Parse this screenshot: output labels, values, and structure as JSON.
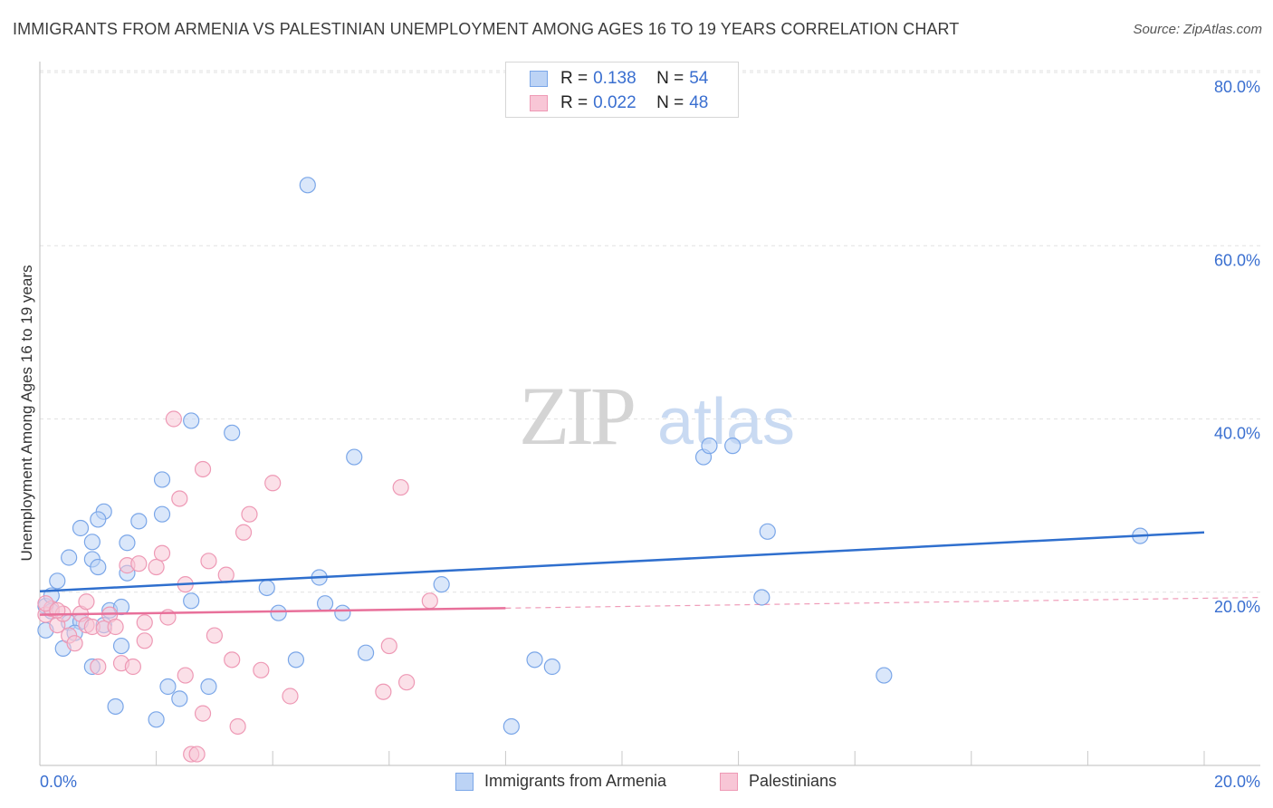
{
  "title": "IMMIGRANTS FROM ARMENIA VS PALESTINIAN UNEMPLOYMENT AMONG AGES 16 TO 19 YEARS CORRELATION CHART",
  "source": "Source: ZipAtlas.com",
  "watermark": {
    "zip": "ZIP",
    "atlas": "atlas"
  },
  "legend": {
    "rows": [
      {
        "r_label": "R =",
        "r_value": "0.138",
        "n_label": "N =",
        "n_value": "54",
        "fill": "#bcd3f5",
        "stroke": "#7aa6e8"
      },
      {
        "r_label": "R =",
        "r_value": "0.022",
        "n_label": "N =",
        "n_value": "48",
        "fill": "#f8c6d6",
        "stroke": "#ee99b5"
      }
    ]
  },
  "chart_data": {
    "type": "scatter",
    "title": "IMMIGRANTS FROM ARMENIA VS PALESTINIAN UNEMPLOYMENT AMONG AGES 16 TO 19 YEARS CORRELATION CHART",
    "xlabel": "",
    "ylabel": "Unemployment Among Ages 16 to 19 years",
    "xlim": [
      0,
      20
    ],
    "ylim": [
      0,
      80
    ],
    "x_tick_labels": [
      "0.0%",
      "20.0%"
    ],
    "y_ticks": [
      20,
      40,
      60,
      80
    ],
    "y_tick_labels": [
      "20.0%",
      "40.0%",
      "60.0%",
      "80.0%"
    ],
    "x_minor_ticks": [
      2,
      4,
      6,
      8,
      10,
      12,
      14,
      16,
      18,
      20
    ],
    "grid": true,
    "series": [
      {
        "name": "Immigrants from Armenia",
        "fill": "#bcd3f5",
        "stroke": "#7aa6e8",
        "line_color": "#2f6fce",
        "trend": {
          "x0": 0,
          "y0": 20.1,
          "x1": 20,
          "y1": 26.9,
          "dashed_from": null
        },
        "points": [
          [
            0.1,
            18.4
          ],
          [
            0.2,
            19.6
          ],
          [
            0.3,
            21.3
          ],
          [
            0.2,
            17.8
          ],
          [
            0.5,
            16.5
          ],
          [
            0.7,
            16.6
          ],
          [
            0.6,
            15.3
          ],
          [
            0.4,
            13.5
          ],
          [
            0.9,
            23.8
          ],
          [
            0.5,
            24.0
          ],
          [
            0.7,
            27.4
          ],
          [
            0.9,
            25.8
          ],
          [
            1.1,
            29.3
          ],
          [
            1.0,
            28.4
          ],
          [
            1.0,
            22.9
          ],
          [
            1.2,
            17.9
          ],
          [
            1.1,
            16.2
          ],
          [
            1.4,
            18.3
          ],
          [
            0.9,
            11.4
          ],
          [
            1.4,
            13.8
          ],
          [
            1.5,
            25.7
          ],
          [
            1.5,
            22.2
          ],
          [
            1.7,
            28.2
          ],
          [
            2.1,
            29.0
          ],
          [
            2.1,
            33.0
          ],
          [
            2.6,
            39.8
          ],
          [
            2.6,
            19.0
          ],
          [
            3.3,
            38.4
          ],
          [
            2.2,
            9.1
          ],
          [
            2.4,
            7.7
          ],
          [
            2.9,
            9.1
          ],
          [
            1.3,
            6.8
          ],
          [
            2.0,
            5.3
          ],
          [
            3.9,
            20.5
          ],
          [
            4.1,
            17.6
          ],
          [
            4.4,
            12.2
          ],
          [
            4.6,
            67.0
          ],
          [
            4.8,
            21.7
          ],
          [
            4.9,
            18.7
          ],
          [
            5.2,
            17.6
          ],
          [
            5.4,
            35.6
          ],
          [
            5.6,
            13.0
          ],
          [
            6.9,
            20.9
          ],
          [
            8.1,
            4.5
          ],
          [
            8.5,
            12.2
          ],
          [
            8.8,
            11.4
          ],
          [
            11.4,
            35.6
          ],
          [
            11.5,
            36.9
          ],
          [
            11.9,
            36.9
          ],
          [
            12.4,
            19.4
          ],
          [
            12.5,
            27.0
          ],
          [
            14.5,
            10.4
          ],
          [
            18.9,
            26.5
          ],
          [
            0.1,
            15.6
          ]
        ]
      },
      {
        "name": "Palestinians",
        "fill": "#f8c6d6",
        "stroke": "#ee99b5",
        "line_color": "#e8709a",
        "trend": {
          "x0": 0,
          "y0": 17.4,
          "x1": 20,
          "y1": 19.3,
          "dashed_from": 8
        },
        "points": [
          [
            0.1,
            17.4
          ],
          [
            0.2,
            18.1
          ],
          [
            0.3,
            16.2
          ],
          [
            0.4,
            17.5
          ],
          [
            0.5,
            15.0
          ],
          [
            0.6,
            14.1
          ],
          [
            0.7,
            17.5
          ],
          [
            0.8,
            16.2
          ],
          [
            0.8,
            18.9
          ],
          [
            0.9,
            16.0
          ],
          [
            1.0,
            11.4
          ],
          [
            1.1,
            15.8
          ],
          [
            1.2,
            17.4
          ],
          [
            1.3,
            16.0
          ],
          [
            1.4,
            11.8
          ],
          [
            1.5,
            23.1
          ],
          [
            1.6,
            11.4
          ],
          [
            1.7,
            23.3
          ],
          [
            1.8,
            16.5
          ],
          [
            1.8,
            14.4
          ],
          [
            2.0,
            22.9
          ],
          [
            2.1,
            24.5
          ],
          [
            2.2,
            17.1
          ],
          [
            2.3,
            40.0
          ],
          [
            2.4,
            30.8
          ],
          [
            2.5,
            20.9
          ],
          [
            2.5,
            10.4
          ],
          [
            2.6,
            1.3
          ],
          [
            2.7,
            1.3
          ],
          [
            2.8,
            34.2
          ],
          [
            2.8,
            6.0
          ],
          [
            2.9,
            23.6
          ],
          [
            3.0,
            15.0
          ],
          [
            3.2,
            22.0
          ],
          [
            3.3,
            12.2
          ],
          [
            3.4,
            4.5
          ],
          [
            3.5,
            26.9
          ],
          [
            3.6,
            29.0
          ],
          [
            3.8,
            11.0
          ],
          [
            4.0,
            32.6
          ],
          [
            4.3,
            8.0
          ],
          [
            6.0,
            13.8
          ],
          [
            5.9,
            8.5
          ],
          [
            6.2,
            32.1
          ],
          [
            6.3,
            9.6
          ],
          [
            6.7,
            19.0
          ],
          [
            0.1,
            18.7
          ],
          [
            0.3,
            17.9
          ]
        ]
      }
    ]
  },
  "bottom_legend": [
    "Immigrants from Armenia",
    "Palestinians"
  ]
}
